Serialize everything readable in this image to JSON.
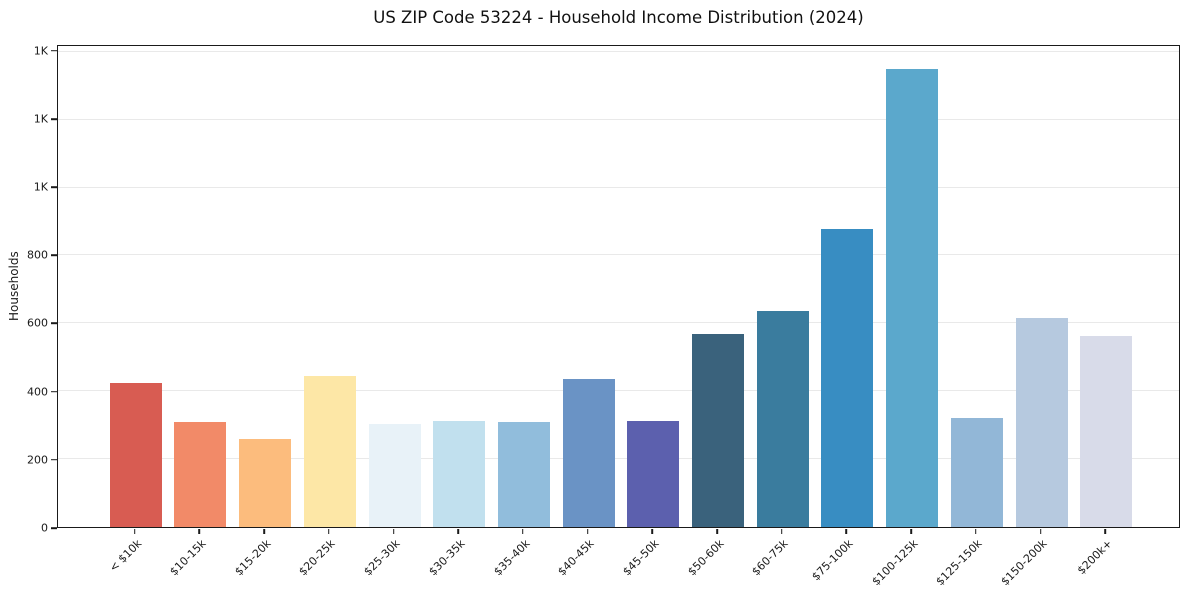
{
  "chart_data": {
    "type": "bar",
    "title": "US ZIP Code 53224 - Household Income Distribution (2024)",
    "xlabel": "",
    "ylabel": "Households",
    "ylim": [
      0,
      1417
    ],
    "grid": "horizontal",
    "legend": "none",
    "xtick_rotation": 45,
    "categories": [
      "< $10k",
      "$10-15k",
      "$15-20k",
      "$20-25k",
      "$25-30k",
      "$30-35k",
      "$35-40k",
      "$40-45k",
      "$45-50k",
      "$50-60k",
      "$60-75k",
      "$75-100k",
      "$100-125k",
      "$125-150k",
      "$150-200k",
      "$200k+"
    ],
    "values": [
      425,
      308,
      260,
      445,
      304,
      311,
      310,
      437,
      313,
      570,
      635,
      877,
      1349,
      320,
      616,
      563
    ],
    "bar_colors": [
      "#d85c52",
      "#f28a68",
      "#fcbc7d",
      "#fde7a6",
      "#e8f2f8",
      "#c1e0ee",
      "#91bddc",
      "#6a93c5",
      "#5c60ae",
      "#3a627c",
      "#3a7c9e",
      "#388dc2",
      "#5ba8cc",
      "#92b7d7",
      "#b6c9df",
      "#d8dbe9"
    ],
    "yticks": [
      {
        "value": 0,
        "label": "0"
      },
      {
        "value": 200,
        "label": "200"
      },
      {
        "value": 400,
        "label": "400"
      },
      {
        "value": 600,
        "label": "600"
      },
      {
        "value": 800,
        "label": "800"
      },
      {
        "value": 1000,
        "label": "1K"
      },
      {
        "value": 1200,
        "label": "1K"
      },
      {
        "value": 1400,
        "label": "1K"
      }
    ]
  },
  "colors": {
    "background": "#ffffff",
    "grid": "#e9e9e9",
    "spine": "#1a1a1a",
    "text": "#1a1a1a",
    "tallest_bar": "#5ba8cc"
  }
}
